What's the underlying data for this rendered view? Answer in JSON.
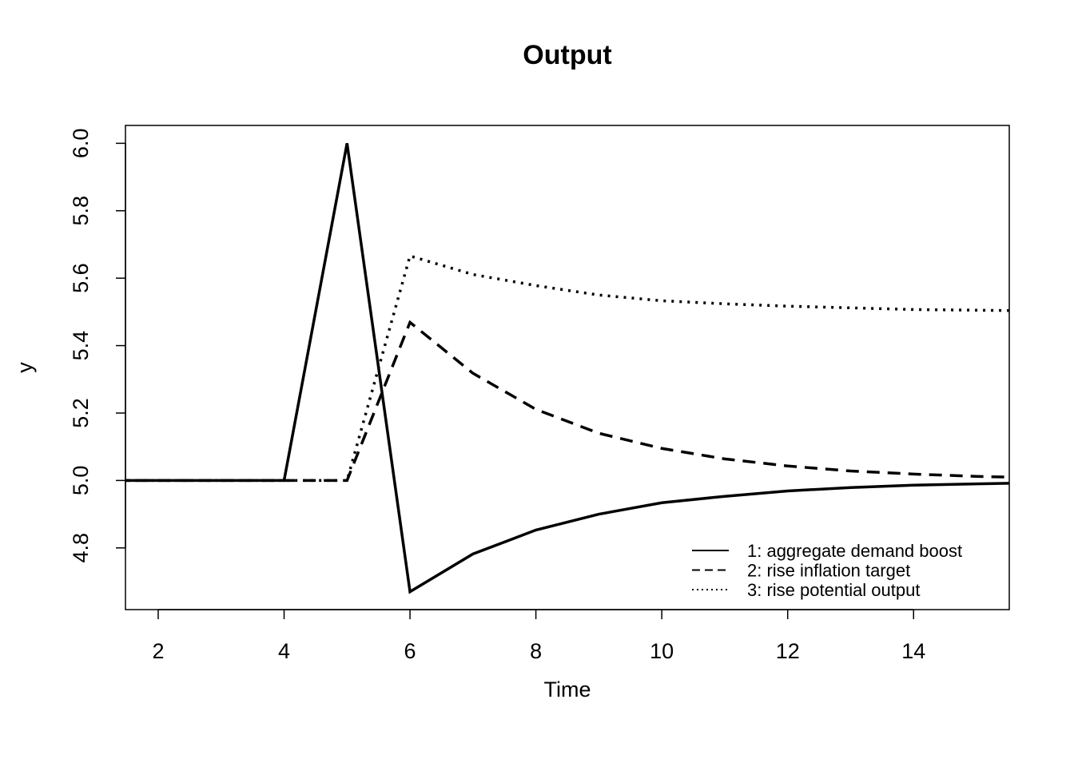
{
  "chart_data": {
    "type": "line",
    "title": "Output",
    "xlabel": "Time",
    "ylabel": "y",
    "xlim": [
      1.48,
      15.52
    ],
    "ylim": [
      4.617,
      6.053
    ],
    "xticks": [
      2,
      4,
      6,
      8,
      10,
      12,
      14
    ],
    "xtick_labels": [
      "2",
      "4",
      "6",
      "8",
      "10",
      "12",
      "14"
    ],
    "yticks": [
      4.8,
      5.0,
      5.2,
      5.4,
      5.6,
      5.8,
      6.0
    ],
    "ytick_labels": [
      "4.8",
      "5.0",
      "5.2",
      "5.4",
      "5.6",
      "5.8",
      "6.0"
    ],
    "grid": false,
    "legend_position": "bottom-right",
    "x": [
      1,
      2,
      3,
      4,
      5,
      6,
      7,
      8,
      9,
      10,
      11,
      12,
      13,
      14,
      15,
      16
    ],
    "series": [
      {
        "name": "1: aggregate demand boost",
        "style": "solid",
        "values": [
          5,
          5,
          5,
          5,
          6.0,
          4.67,
          4.782,
          4.853,
          4.9,
          4.934,
          4.953,
          4.969,
          4.979,
          4.986,
          4.99,
          4.993
        ]
      },
      {
        "name": "2: rise inflation target",
        "style": "dashed",
        "values": [
          5,
          5,
          5,
          5,
          5,
          5.469,
          5.318,
          5.211,
          5.14,
          5.095,
          5.064,
          5.043,
          5.028,
          5.019,
          5.012,
          5.008
        ]
      },
      {
        "name": "3: rise potential output",
        "style": "dotted",
        "values": [
          5,
          5,
          5,
          5,
          5,
          5.666,
          5.611,
          5.578,
          5.55,
          5.533,
          5.524,
          5.517,
          5.512,
          5.507,
          5.505,
          5.503
        ]
      }
    ]
  }
}
